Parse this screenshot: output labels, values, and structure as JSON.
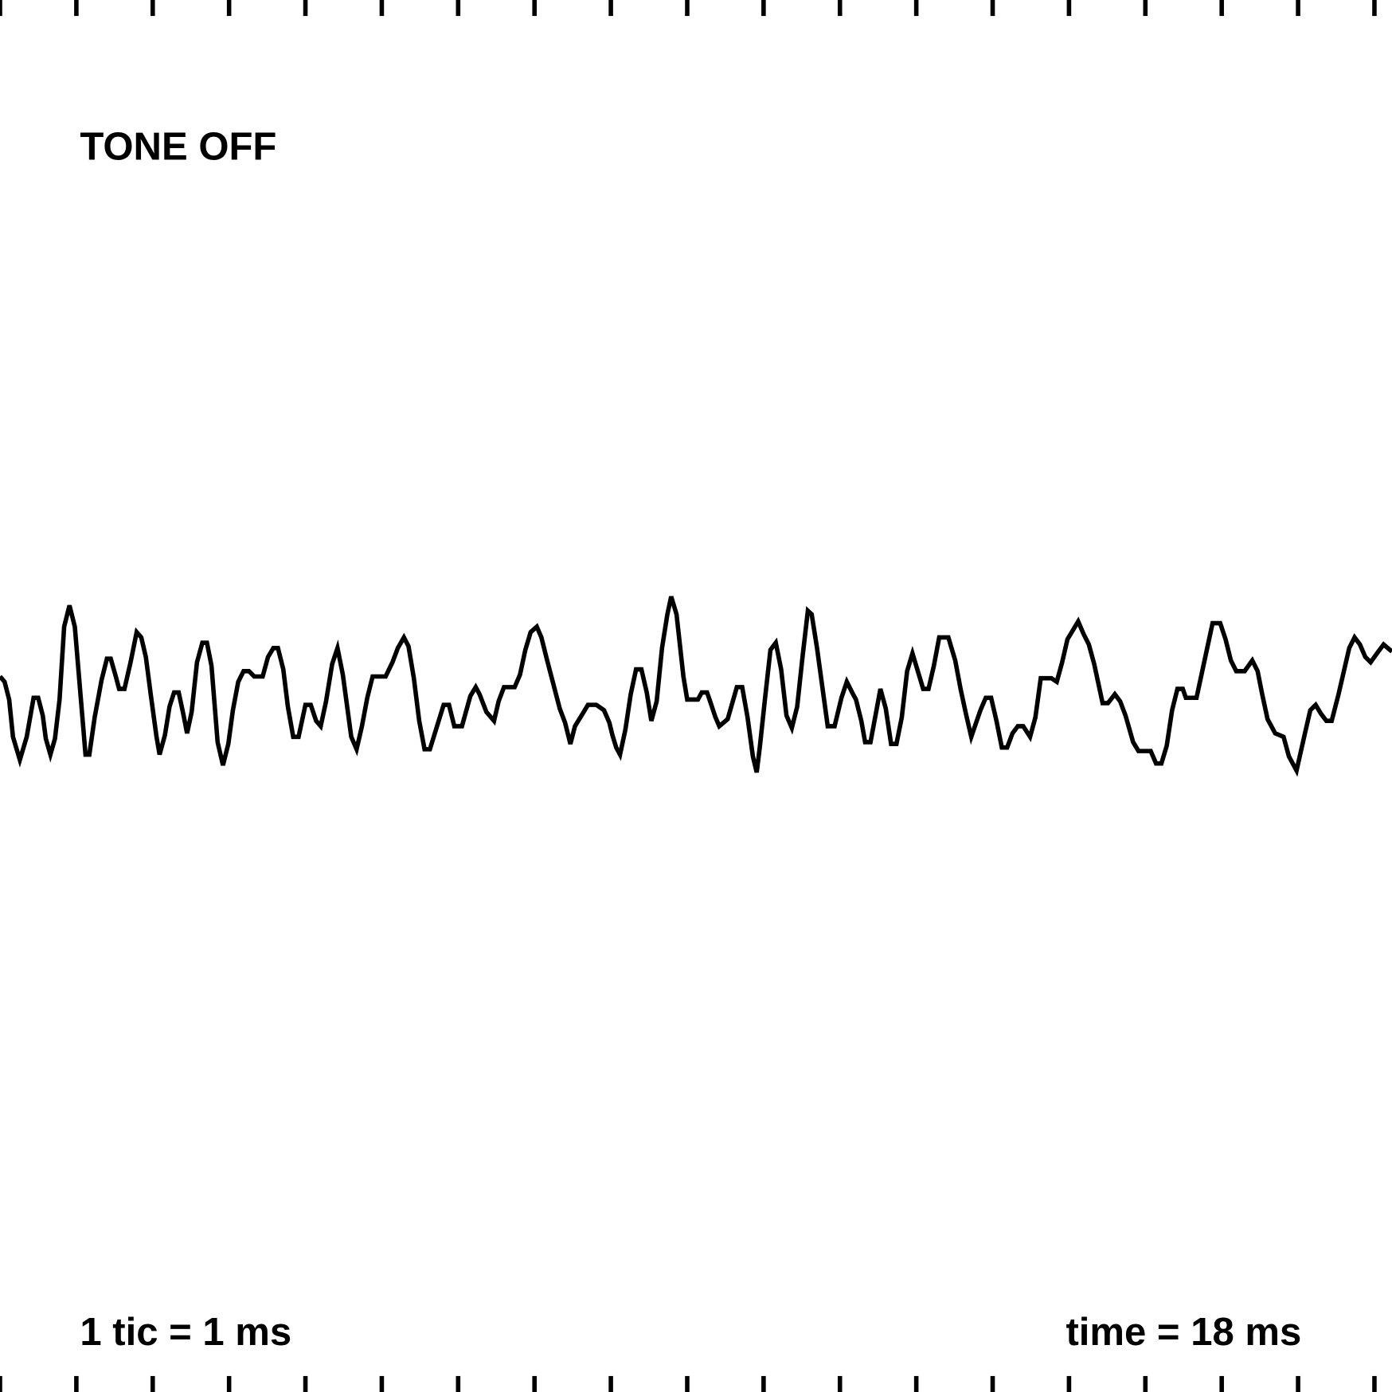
{
  "chart_data": {
    "type": "line",
    "status": "TONE OFF",
    "scale_note": "1 tic = 1 ms",
    "time_label": "time = 18 ms",
    "color": "#000000",
    "xlim": [
      0,
      18.23
    ],
    "ylim": [
      -784,
      784
    ],
    "xticks": [
      0,
      1,
      2,
      3,
      4,
      5,
      6,
      7,
      8,
      9,
      10,
      11,
      12,
      13,
      14,
      15,
      16,
      17,
      18
    ],
    "x": [
      0.0,
      0.06,
      0.12,
      0.17,
      0.26,
      0.35,
      0.44,
      0.5,
      0.56,
      0.6,
      0.66,
      0.72,
      0.78,
      0.84,
      0.91,
      0.98,
      1.12,
      1.17,
      1.24,
      1.33,
      1.4,
      1.45,
      1.51,
      1.56,
      1.63,
      1.71,
      1.79,
      1.85,
      1.91,
      1.98,
      2.05,
      2.09,
      2.16,
      2.22,
      2.28,
      2.34,
      2.4,
      2.45,
      2.51,
      2.58,
      2.65,
      2.71,
      2.77,
      2.85,
      2.92,
      2.99,
      3.05,
      3.12,
      3.19,
      3.26,
      3.33,
      3.44,
      3.51,
      3.58,
      3.64,
      3.71,
      3.77,
      3.84,
      3.91,
      4.0,
      4.07,
      4.14,
      4.2,
      4.27,
      4.35,
      4.42,
      4.49,
      4.6,
      4.67,
      4.74,
      4.81,
      4.88,
      5.05,
      5.14,
      5.21,
      5.29,
      5.35,
      5.42,
      5.49,
      5.56,
      5.63,
      5.81,
      5.88,
      5.95,
      6.05,
      6.16,
      6.23,
      6.28,
      6.37,
      6.47,
      6.53,
      6.6,
      6.74,
      6.81,
      6.88,
      6.95,
      7.03,
      7.09,
      7.16,
      7.33,
      7.4,
      7.47,
      7.53,
      7.63,
      7.7,
      7.81,
      7.91,
      7.98,
      8.02,
      8.07,
      8.12,
      8.19,
      8.26,
      8.33,
      8.4,
      8.47,
      8.53,
      8.6,
      8.67,
      8.74,
      8.79,
      8.86,
      8.95,
      9.0,
      9.14,
      9.19,
      9.26,
      9.3,
      9.37,
      9.42,
      9.53,
      9.65,
      9.72,
      9.79,
      9.86,
      9.91,
      9.95,
      10.02,
      10.09,
      10.16,
      10.23,
      10.3,
      10.37,
      10.44,
      10.51,
      10.58,
      10.63,
      10.7,
      10.84,
      10.93,
      11.02,
      11.09,
      11.16,
      11.21,
      11.28,
      11.33,
      11.4,
      11.47,
      11.53,
      11.6,
      11.67,
      11.74,
      11.81,
      11.88,
      11.95,
      12.02,
      12.09,
      12.16,
      12.23,
      12.3,
      12.42,
      12.51,
      12.58,
      12.65,
      12.72,
      12.84,
      12.91,
      12.98,
      13.05,
      13.12,
      13.19,
      13.26,
      13.33,
      13.4,
      13.49,
      13.56,
      13.63,
      13.77,
      13.84,
      13.91,
      13.98,
      14.05,
      14.12,
      14.19,
      14.26,
      14.33,
      14.44,
      14.51,
      14.6,
      14.67,
      14.74,
      14.84,
      14.91,
      15.07,
      15.14,
      15.21,
      15.28,
      15.35,
      15.42,
      15.49,
      15.53,
      15.67,
      15.77,
      15.88,
      15.98,
      16.05,
      16.12,
      16.19,
      16.3,
      16.4,
      16.47,
      16.53,
      16.6,
      16.7,
      16.81,
      16.88,
      16.98,
      17.09,
      17.16,
      17.23,
      17.3,
      17.37,
      17.44,
      17.53,
      17.6,
      17.67,
      17.74,
      17.81,
      17.88,
      17.95,
      18.05,
      18.12,
      18.23
    ],
    "values": [
      22,
      16,
      -4,
      -46,
      -72,
      -46,
      -2,
      -2,
      -22,
      -48,
      -66,
      -48,
      -4,
      78,
      102,
      78,
      -66,
      -66,
      -24,
      18,
      42,
      42,
      24,
      8,
      8,
      38,
      72,
      66,
      44,
      -2,
      -46,
      -66,
      -44,
      -12,
      4,
      4,
      -20,
      -42,
      -18,
      38,
      60,
      60,
      34,
      -52,
      -78,
      -54,
      -16,
      16,
      28,
      28,
      22,
      22,
      44,
      54,
      54,
      30,
      -12,
      -46,
      -46,
      -10,
      -10,
      -28,
      -34,
      -6,
      36,
      54,
      24,
      -46,
      -60,
      -34,
      -2,
      22,
      22,
      38,
      54,
      66,
      56,
      20,
      -28,
      -60,
      -60,
      -10,
      -10,
      -34,
      -34,
      0,
      10,
      2,
      -18,
      -28,
      -6,
      10,
      10,
      24,
      52,
      72,
      78,
      66,
      42,
      -14,
      -30,
      -54,
      -34,
      -20,
      -10,
      -10,
      -16,
      -30,
      -44,
      -58,
      -66,
      -38,
      2,
      30,
      30,
      4,
      -28,
      -6,
      54,
      92,
      112,
      92,
      22,
      -4,
      -4,
      4,
      4,
      -6,
      -24,
      -34,
      -26,
      10,
      10,
      -24,
      -68,
      -86,
      -58,
      -2,
      52,
      60,
      30,
      -22,
      -36,
      -12,
      44,
      96,
      92,
      54,
      -34,
      -34,
      -2,
      16,
      4,
      -4,
      -28,
      -52,
      -52,
      -20,
      8,
      -14,
      -54,
      -54,
      -24,
      28,
      48,
      28,
      8,
      8,
      34,
      66,
      66,
      40,
      8,
      -20,
      -46,
      -16,
      -2,
      -2,
      -28,
      -58,
      -58,
      -42,
      -34,
      -34,
      -46,
      -24,
      20,
      20,
      16,
      38,
      64,
      74,
      84,
      70,
      58,
      36,
      -8,
      -8,
      2,
      -6,
      -22,
      -52,
      -62,
      -62,
      -76,
      -76,
      -56,
      -16,
      8,
      8,
      -2,
      -2,
      38,
      82,
      82,
      64,
      40,
      28,
      28,
      40,
      28,
      2,
      -26,
      -42,
      -46,
      -68,
      -84,
      -42,
      -16,
      -10,
      -20,
      -28,
      -28,
      2,
      28,
      54,
      66,
      58,
      44,
      38,
      50,
      58,
      50
    ]
  }
}
